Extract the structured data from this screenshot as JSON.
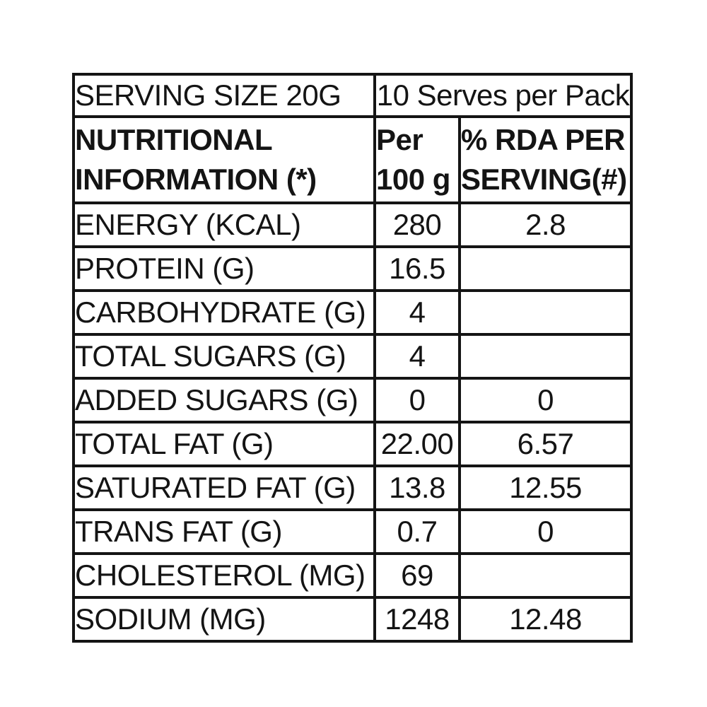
{
  "table": {
    "serving_row": {
      "label": "SERVING SIZE 20G",
      "value": "10 Serves per Pack"
    },
    "header": {
      "col1_line1": "NUTRITIONAL",
      "col1_line2": "INFORMATION (*)",
      "col2_line1": "Per",
      "col2_line2": "100 g",
      "col3_line1": "% RDA PER",
      "col3_line2": "SERVING(#)"
    },
    "rows": [
      {
        "label": "ENERGY (KCAL)",
        "per100": "280",
        "rda": "2.8"
      },
      {
        "label": "PROTEIN (G)",
        "per100": "16.5",
        "rda": ""
      },
      {
        "label": "CARBOHYDRATE (G)",
        "per100": "4",
        "rda": ""
      },
      {
        "label": "TOTAL SUGARS (G)",
        "per100": "4",
        "rda": ""
      },
      {
        "label": "ADDED SUGARS (G)",
        "per100": "0",
        "rda": "0"
      },
      {
        "label": "TOTAL FAT (G)",
        "per100": "22.00",
        "rda": "6.57"
      },
      {
        "label": "SATURATED FAT (G)",
        "per100": "13.8",
        "rda": "12.55"
      },
      {
        "label": "TRANS FAT (G)",
        "per100": "0.7",
        "rda": "0"
      },
      {
        "label": "CHOLESTEROL (MG)",
        "per100": "69",
        "rda": ""
      },
      {
        "label": "SODIUM (MG)",
        "per100": "1248",
        "rda": "12.48"
      }
    ],
    "colors": {
      "border": "#141414",
      "text": "#141414",
      "background": "#ffffff"
    }
  }
}
